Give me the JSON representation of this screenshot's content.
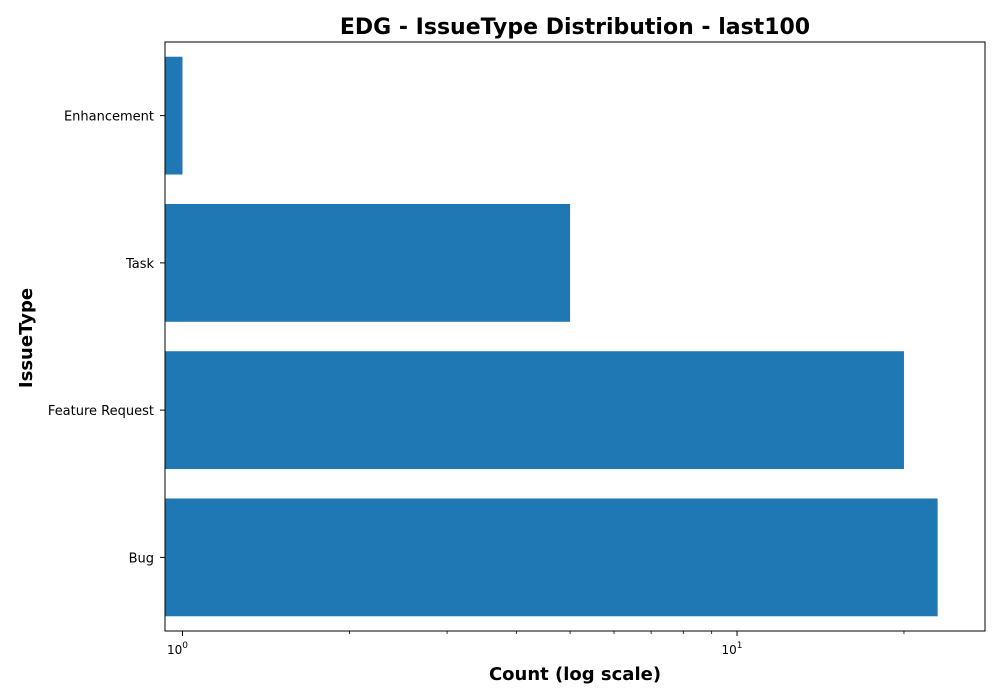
{
  "chart_data": {
    "type": "bar",
    "orientation": "horizontal",
    "title": "EDG - IssueType Distribution - last100",
    "xlabel": "Count (log scale)",
    "ylabel": "IssueType",
    "x_scale": "log",
    "xlim": [
      0.93,
      28
    ],
    "x_ticks": [
      {
        "value": 1,
        "base": "10",
        "exp": "0"
      },
      {
        "value": 10,
        "base": "10",
        "exp": "1"
      }
    ],
    "categories": [
      "Bug",
      "Feature Request",
      "Task",
      "Enhancement"
    ],
    "values": [
      23,
      20,
      5,
      1
    ],
    "bar_color": "#1f77b4",
    "grid": false,
    "legend": "none"
  }
}
